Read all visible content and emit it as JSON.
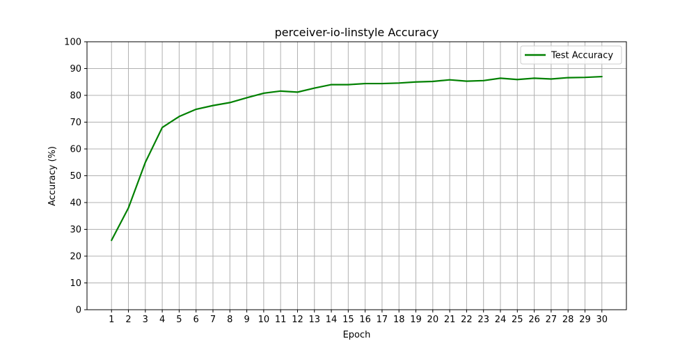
{
  "chart_data": {
    "type": "line",
    "title": "perceiver-io-linstyle Accuracy",
    "xlabel": "Epoch",
    "ylabel": "Accuracy (%)",
    "x": [
      1,
      2,
      3,
      4,
      5,
      6,
      7,
      8,
      9,
      10,
      11,
      12,
      13,
      14,
      15,
      16,
      17,
      18,
      19,
      20,
      21,
      22,
      23,
      24,
      25,
      26,
      27,
      28,
      29,
      30
    ],
    "ylim": [
      0,
      100
    ],
    "yticks": [
      0,
      10,
      20,
      30,
      40,
      50,
      60,
      70,
      80,
      90,
      100
    ],
    "grid": true,
    "legend_position": "top-right",
    "series": [
      {
        "name": "Test Accuracy",
        "color": "#008000",
        "values": [
          25.9,
          38.0,
          55.0,
          68.0,
          72.1,
          74.8,
          76.2,
          77.3,
          79.1,
          80.8,
          81.6,
          81.2,
          82.7,
          84.0,
          84.0,
          84.4,
          84.4,
          84.6,
          85.0,
          85.2,
          85.8,
          85.3,
          85.5,
          86.4,
          85.9,
          86.4,
          86.1,
          86.6,
          86.7,
          87.0
        ]
      }
    ]
  }
}
